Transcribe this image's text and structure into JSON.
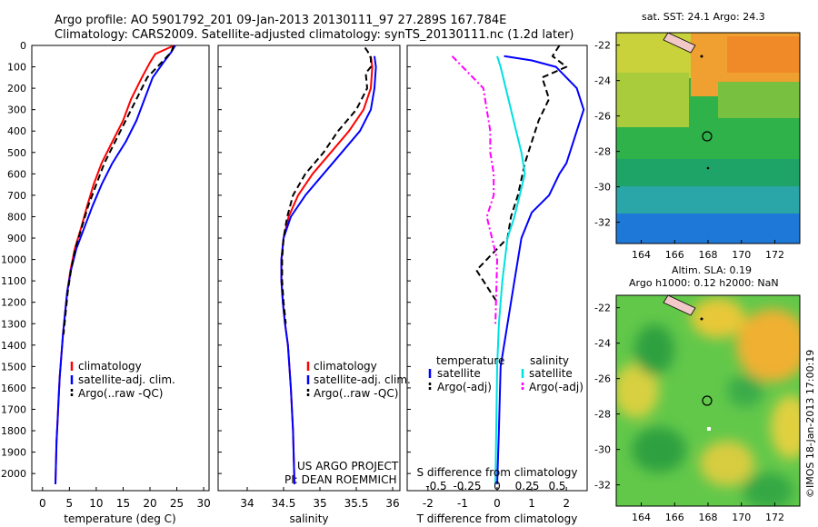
{
  "header": {
    "line1": "Argo profile: AO 5901792_201 09-Jan-2013 20130111_97 27.289S 167.784E",
    "line2": "Climatology: CARS2009. Satellite-adjusted climatology: synTS_20130111.nc (1.2d later)"
  },
  "colors": {
    "climatology": "#ff0000",
    "satellite": "#0000ff",
    "argo": "#000000",
    "cyan": "#00e0e0",
    "magenta": "#ff00ff"
  },
  "chart_data": [
    {
      "type": "line",
      "xlabel": "temperature (deg C)",
      "ylabel": "",
      "xlim": [
        -2,
        31
      ],
      "ylim": [
        2080,
        0
      ],
      "xticks": [
        0,
        5,
        10,
        15,
        20,
        25,
        30
      ],
      "yticks": [
        0,
        100,
        200,
        300,
        400,
        500,
        600,
        700,
        800,
        900,
        1000,
        1100,
        1200,
        1300,
        1400,
        1500,
        1600,
        1700,
        1800,
        1900,
        2000
      ],
      "legend": [
        "climatology",
        "satellite-adj. clim.",
        "Argo(..raw -QC)"
      ],
      "series": [
        {
          "name": "climatology",
          "color": "#ff0000",
          "style": "solid",
          "x": [
            24.5,
            21,
            20,
            18.5,
            16.5,
            15,
            13,
            11,
            9.5,
            8.3,
            7.2,
            6,
            5.2,
            4.6,
            4.2,
            3.8,
            3.5,
            3.2,
            3,
            2.8,
            2.6,
            2.5,
            2.4
          ],
          "y": [
            0,
            40,
            80,
            150,
            250,
            350,
            450,
            550,
            650,
            750,
            850,
            950,
            1050,
            1150,
            1250,
            1350,
            1450,
            1550,
            1650,
            1750,
            1850,
            1950,
            2050
          ]
        },
        {
          "name": "satellite-adj. clim.",
          "color": "#0000ff",
          "style": "solid",
          "x": [
            24.7,
            24,
            22.5,
            20.5,
            19,
            17.5,
            15.5,
            13,
            11,
            9.3,
            7.8,
            6.3,
            5.3,
            4.6,
            4.2,
            3.8,
            3.5,
            3.2,
            3,
            2.8,
            2.6,
            2.5,
            2.4
          ],
          "y": [
            0,
            30,
            80,
            150,
            250,
            350,
            450,
            550,
            650,
            750,
            850,
            950,
            1050,
            1150,
            1250,
            1350,
            1450,
            1550,
            1650,
            1750,
            1850,
            1950,
            2050
          ]
        },
        {
          "name": "Argo(..raw -QC)",
          "color": "#000000",
          "style": "dashed",
          "x": [
            24.4,
            24,
            22.5,
            19.5,
            17.5,
            15.5,
            13.5,
            11.5,
            10,
            8.5,
            7.3,
            6.1,
            5.3,
            4.7,
            4.3,
            3.9
          ],
          "y": [
            0,
            30,
            70,
            150,
            250,
            350,
            450,
            550,
            650,
            750,
            850,
            950,
            1050,
            1150,
            1250,
            1350
          ]
        }
      ]
    },
    {
      "type": "line",
      "xlabel": "salinity",
      "ylabel": "",
      "xlim": [
        33.6,
        36.1
      ],
      "ylim": [
        2080,
        0
      ],
      "xticks": [
        34,
        34.5,
        35,
        35.5,
        36
      ],
      "legend": [
        "climatology",
        "satellite-adj. clim.",
        "Argo(..raw -QC)"
      ],
      "annotations": [
        "US ARGO PROJECT",
        "PI: DEAN ROEMMICH"
      ],
      "series": [
        {
          "name": "climatology",
          "color": "#ff0000",
          "style": "solid",
          "x": [
            35.7,
            35.72,
            35.7,
            35.6,
            35.4,
            35.15,
            34.9,
            34.7,
            34.57,
            34.5,
            34.47,
            34.47,
            34.49,
            34.52,
            34.56,
            34.6,
            34.63,
            34.65
          ],
          "y": [
            50,
            100,
            200,
            300,
            400,
            500,
            600,
            700,
            800,
            900,
            1000,
            1100,
            1200,
            1300,
            1400,
            1600,
            1800,
            2050
          ]
        },
        {
          "name": "satellite-adj. clim.",
          "color": "#0000ff",
          "style": "solid",
          "x": [
            35.75,
            35.77,
            35.75,
            35.7,
            35.55,
            35.3,
            35.05,
            34.8,
            34.6,
            34.5,
            34.47,
            34.47,
            34.49,
            34.52,
            34.56,
            34.6,
            34.63,
            34.65
          ],
          "y": [
            50,
            100,
            200,
            300,
            400,
            500,
            600,
            700,
            800,
            900,
            1000,
            1100,
            1200,
            1300,
            1400,
            1600,
            1800,
            2050
          ]
        },
        {
          "name": "Argo(..raw -QC)",
          "color": "#000000",
          "style": "dashed",
          "x": [
            35.62,
            35.66,
            35.7,
            35.7,
            35.63,
            35.65,
            35.5,
            35.25,
            35.05,
            34.8,
            34.63,
            34.55,
            34.5,
            34.48,
            34.48,
            34.5,
            34.53
          ],
          "y": [
            10,
            30,
            60,
            100,
            130,
            200,
            300,
            400,
            500,
            600,
            700,
            800,
            900,
            1000,
            1100,
            1200,
            1300
          ]
        }
      ]
    },
    {
      "type": "line",
      "xlabel": "T difference from climatology",
      "ylabel": "",
      "xlim": [
        -2.6,
        2.6
      ],
      "ylim": [
        2080,
        0
      ],
      "xticks": [
        -2,
        -1,
        0,
        1,
        2
      ],
      "top_axis_label": "S difference from climatology",
      "top_axis_ticks": [
        "-0.5",
        "-0.25",
        "0",
        "0.25",
        "0.5"
      ],
      "legend_left_title": "temperature",
      "legend_right_title": "salinity",
      "legend_left": [
        "satellite",
        "Argo(-adj)"
      ],
      "legend_right": [
        "satellite",
        "Argo(-adj)"
      ],
      "series": [
        {
          "name": "satellite",
          "color": "#0000ff",
          "style": "solid",
          "x": [
            0.2,
            1,
            1.7,
            2.3,
            2.5,
            2.3,
            2.1,
            2,
            1.8,
            1.5,
            1,
            0.7,
            0.5,
            0.3,
            0.1,
            0.05,
            0
          ],
          "y": [
            50,
            70,
            100,
            200,
            300,
            400,
            500,
            550,
            600,
            700,
            780,
            900,
            1100,
            1300,
            1500,
            1800,
            2050
          ]
        },
        {
          "name": "Argo(-adj)",
          "color": "#000000",
          "style": "dashed",
          "x": [
            1.8,
            1.6,
            2,
            1.3,
            1.5,
            1.2,
            1,
            0.8,
            0.6,
            0.4,
            0.3,
            0,
            -0.3,
            -0.6,
            -0.4,
            -0.2,
            0
          ],
          "y": [
            0,
            50,
            100,
            150,
            250,
            350,
            450,
            550,
            700,
            800,
            900,
            950,
            1000,
            1050,
            1100,
            1150,
            1200
          ]
        },
        {
          "name": "salinity satellite",
          "color": "#00e0e0",
          "style": "solid",
          "x": [
            0,
            0.1,
            0.25,
            0.4,
            0.55,
            0.7,
            0.8,
            0.65,
            0.5,
            0.3,
            0.15,
            0.05,
            0,
            -0.05
          ],
          "y": [
            50,
            100,
            200,
            300,
            400,
            500,
            600,
            700,
            800,
            900,
            1100,
            1300,
            1500,
            2050
          ]
        },
        {
          "name": "salinity Argo(-adj)",
          "color": "#ff00ff",
          "style": "dashdot",
          "x": [
            -1.3,
            -1,
            -0.4,
            -0.3,
            -0.2,
            -0.2,
            -0.1,
            -0.1,
            -0.3,
            0,
            -0.05
          ],
          "y": [
            50,
            100,
            200,
            300,
            400,
            500,
            600,
            700,
            800,
            1000,
            1300
          ]
        }
      ]
    }
  ],
  "maps": {
    "sst": {
      "title": "sat. SST: 24.1  Argo: 24.3",
      "xticks": [
        "164",
        "166",
        "168",
        "170",
        "172"
      ],
      "yticks": [
        "-22",
        "-24",
        "-26",
        "-28",
        "-30",
        "-32"
      ]
    },
    "sla": {
      "title1": "Altim. SLA: 0.19",
      "title2": "Argo h1000: 0.12 h2000: NaN",
      "xticks": [
        "164",
        "166",
        "168",
        "170",
        "172"
      ],
      "yticks": [
        "-22",
        "-24",
        "-26",
        "-28",
        "-30",
        "-32"
      ]
    }
  },
  "footer": {
    "credit": "©IMOS 18-Jan-2013 17:00:19"
  }
}
